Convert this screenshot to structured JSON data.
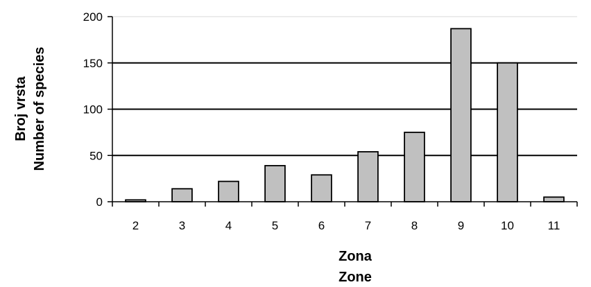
{
  "chart_data": {
    "type": "bar",
    "title": "",
    "xlabel_lines": [
      "Zona",
      "Zone"
    ],
    "ylabel_lines": [
      "Broj vrsta",
      "Number of species"
    ],
    "categories": [
      "2",
      "3",
      "4",
      "5",
      "6",
      "7",
      "8",
      "9",
      "10",
      "11"
    ],
    "values": [
      2,
      14,
      22,
      39,
      29,
      54,
      75,
      187,
      150,
      5
    ],
    "ylim": [
      0,
      200
    ],
    "yticks": [
      0,
      50,
      100,
      150,
      200
    ],
    "grid": true,
    "legend": "none",
    "colors": {
      "bar_fill": "#c0c0c0",
      "bar_stroke": "#000000",
      "grid": "#000000",
      "axis": "#000000"
    }
  }
}
